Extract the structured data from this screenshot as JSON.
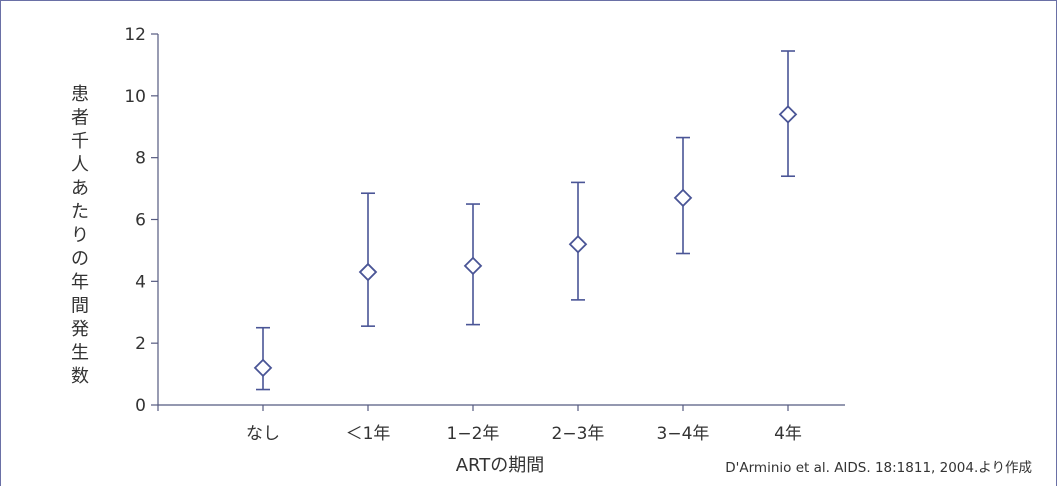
{
  "chart_data": {
    "type": "scatter",
    "categories": [
      "なし",
      "＜1年",
      "1−2年",
      "2−3年",
      "3−4年",
      "4年"
    ],
    "values": [
      1.2,
      4.3,
      4.5,
      5.2,
      6.7,
      9.4
    ],
    "lower": [
      0.5,
      2.55,
      2.6,
      3.4,
      4.9,
      7.4
    ],
    "upper": [
      2.5,
      6.85,
      6.5,
      7.2,
      8.65,
      11.45
    ],
    "ylim": [
      0,
      12
    ],
    "yticks": [
      0,
      2,
      4,
      6,
      8,
      10,
      12
    ],
    "xlabel": "ARTの期間",
    "ylabel": "患者千人あたりの年間発生数",
    "grid": false,
    "marker": "open-diamond",
    "color": "#4a5596"
  },
  "source": "D'Arminio et al. AIDS. 18:1811, 2004.より作成"
}
